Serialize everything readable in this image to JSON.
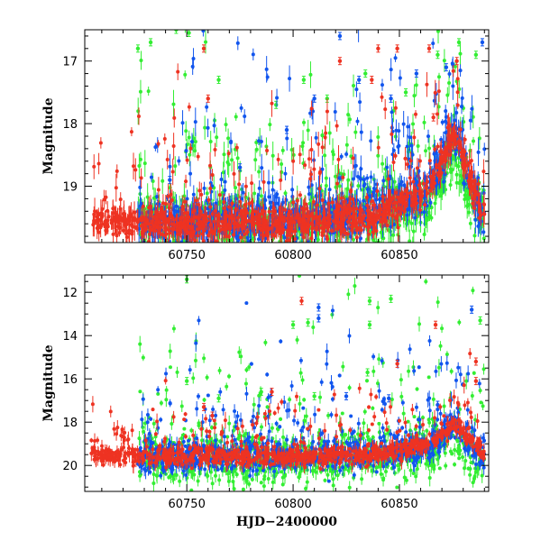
{
  "chart_data": [
    {
      "type": "scatter",
      "panel": "top",
      "xlabel": "",
      "ylabel": "Magnitude",
      "xlim": [
        60702,
        60892
      ],
      "ylim": [
        19.9,
        16.5
      ],
      "y_inverted": true,
      "x_ticks": [
        60750,
        60800,
        60850
      ],
      "x_tick_labels": [
        "60750",
        "60800",
        "60850"
      ],
      "y_ticks": [
        17,
        18,
        19
      ],
      "y_tick_labels": [
        "17",
        "18",
        "19"
      ],
      "grid": false,
      "legend": "none",
      "series": [
        {
          "color": "#33ee33",
          "baseline": [
            [
              60727,
              19.6
            ],
            [
              60800,
              19.6
            ],
            [
              60840,
              19.5
            ],
            [
              60865,
              19.3
            ],
            [
              60876,
              18.5
            ],
            [
              60885,
              19.4
            ],
            [
              60890,
              19.5
            ]
          ],
          "scatter": 0.6,
          "outliers": [
            [
              60727,
              16.8
            ],
            [
              60733,
              16.7
            ],
            [
              60745,
              16.5
            ],
            [
              60751,
              16.55
            ],
            [
              60765,
              17.3
            ],
            [
              60792,
              17.7
            ],
            [
              60805,
              17.3
            ],
            [
              60816,
              17.6
            ],
            [
              60834,
              17.2
            ],
            [
              60853,
              17.5
            ],
            [
              60868,
              16.9
            ],
            [
              60878,
              16.7
            ],
            [
              60886,
              16.9
            ]
          ]
        },
        {
          "color": "#1155ee",
          "baseline": [
            [
              60727,
              19.6
            ],
            [
              60800,
              19.55
            ],
            [
              60840,
              19.4
            ],
            [
              60865,
              19.0
            ],
            [
              60876,
              18.1
            ],
            [
              60885,
              19.2
            ],
            [
              60890,
              19.5
            ]
          ],
          "scatter": 0.5,
          "outliers": [
            [
              60742,
              18.9
            ],
            [
              60775,
              18.7
            ],
            [
              60797,
              18.1
            ],
            [
              60810,
              17.6
            ],
            [
              60822,
              16.6
            ],
            [
              60831,
              17.3
            ],
            [
              60846,
              17.6
            ],
            [
              60858,
              17.2
            ],
            [
              60872,
              17.1
            ],
            [
              60889,
              16.7
            ]
          ]
        },
        {
          "color": "#ee3322",
          "baseline": [
            [
              60705,
              19.55
            ],
            [
              60727,
              19.6
            ],
            [
              60800,
              19.6
            ],
            [
              60838,
              19.5
            ],
            [
              60865,
              19.0
            ],
            [
              60876,
              18.1
            ],
            [
              60885,
              19.1
            ],
            [
              60890,
              19.5
            ]
          ],
          "scatter": 0.35,
          "outliers": [
            [
              60758,
              16.8
            ],
            [
              60760,
              17.6
            ],
            [
              60822,
              17.0
            ],
            [
              60837,
              17.3
            ],
            [
              60840,
              16.8
            ],
            [
              60849,
              16.8
            ],
            [
              60864,
              16.8
            ],
            [
              60866,
              17.9
            ],
            [
              60877,
              17.0
            ]
          ]
        }
      ]
    },
    {
      "type": "scatter",
      "panel": "bottom",
      "xlabel": "HJD−2400000",
      "ylabel": "Magnitude",
      "xlim": [
        60702,
        60892
      ],
      "ylim": [
        21.2,
        11.2
      ],
      "y_inverted": true,
      "x_ticks": [
        60750,
        60800,
        60850
      ],
      "x_tick_labels": [
        "60750",
        "60800",
        "60850"
      ],
      "y_ticks": [
        12,
        14,
        16,
        18,
        20
      ],
      "y_tick_labels": [
        "12",
        "14",
        "16",
        "18",
        "20"
      ],
      "grid": false,
      "legend": "none",
      "series": [
        {
          "color": "#33ee33",
          "baseline": [
            [
              60727,
              19.7
            ],
            [
              60800,
              19.8
            ],
            [
              60840,
              19.6
            ],
            [
              60865,
              19.4
            ],
            [
              60876,
              18.8
            ],
            [
              60885,
              19.7
            ],
            [
              60890,
              20.0
            ]
          ],
          "scatter": 1.6,
          "outliers": [
            [
              60750,
              11.4
            ],
            [
              60800,
              13.5
            ],
            [
              60807,
              13.4
            ],
            [
              60836,
              12.4
            ],
            [
              60836,
              13.5
            ],
            [
              60846,
              12.3
            ],
            [
              60835,
              15.7
            ],
            [
              60888,
              13.3
            ],
            [
              60750,
              16.1
            ],
            [
              60765,
              16.9
            ],
            [
              60785,
              16.6
            ],
            [
              60810,
              16.8
            ]
          ]
        },
        {
          "color": "#1155ee",
          "baseline": [
            [
              60727,
              19.6
            ],
            [
              60800,
              19.6
            ],
            [
              60840,
              19.4
            ],
            [
              60865,
              19.1
            ],
            [
              60876,
              18.2
            ],
            [
              60885,
              19.2
            ],
            [
              60890,
              19.6
            ]
          ],
          "scatter": 1.0,
          "outliers": [
            [
              60812,
              12.7
            ],
            [
              60812,
              13.2
            ],
            [
              60884,
              12.8
            ],
            [
              60825,
              16.8
            ],
            [
              60845,
              16.9
            ],
            [
              60868,
              17.2
            ]
          ]
        },
        {
          "color": "#ee3322",
          "baseline": [
            [
              60705,
              19.5
            ],
            [
              60727,
              19.6
            ],
            [
              60800,
              19.6
            ],
            [
              60838,
              19.5
            ],
            [
              60865,
              19.0
            ],
            [
              60876,
              18.1
            ],
            [
              60885,
              19.0
            ],
            [
              60890,
              19.5
            ]
          ],
          "scatter": 0.55,
          "outliers": [
            [
              60804,
              12.4
            ],
            [
              60867,
              13.5
            ],
            [
              60849,
              15.3
            ],
            [
              60886,
              15.2
            ],
            [
              60886,
              16.1
            ],
            [
              60758,
              17.3
            ],
            [
              60762,
              17.7
            ],
            [
              60790,
              16.6
            ]
          ]
        }
      ]
    }
  ]
}
